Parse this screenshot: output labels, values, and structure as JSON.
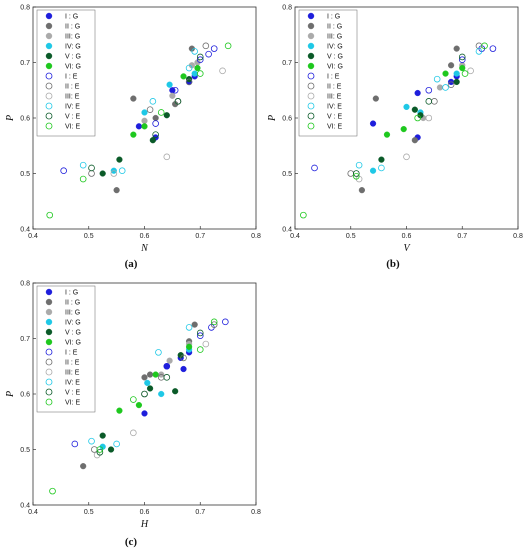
{
  "colors": {
    "I": "#1e1edc",
    "II": "#6e6e6e",
    "III": "#aaaaaa",
    "IV": "#1ec8e6",
    "V": "#0a5a28",
    "VI": "#1ec81e"
  },
  "chart_data": [
    {
      "type": "scatter",
      "panel_label": "(a)",
      "xlabel": "N",
      "ylabel": "P",
      "xlim": [
        0.4,
        0.8
      ],
      "ylim": [
        0.4,
        0.8
      ],
      "xticks": [
        "0.4",
        "0.5",
        "0.6",
        "0.7",
        "0.8"
      ],
      "yticks": [
        "0.4",
        "0.5",
        "0.6",
        "0.7",
        "0.8"
      ],
      "legend_position": "top-left",
      "legend": [
        "I : G",
        "II : G",
        "III: G",
        "IV: G",
        "V : G",
        "VI: G",
        "I : E",
        "II : E",
        "III: E",
        "IV: E",
        "V : E",
        "VI: E"
      ],
      "series": [
        {
          "name": "I : G",
          "group": "I",
          "filled": true,
          "points": [
            [
              0.59,
              0.585
            ],
            [
              0.62,
              0.565
            ],
            [
              0.65,
              0.65
            ],
            [
              0.68,
              0.665
            ],
            [
              0.69,
              0.675
            ]
          ]
        },
        {
          "name": "II : G",
          "group": "II",
          "filled": true,
          "points": [
            [
              0.55,
              0.47
            ],
            [
              0.58,
              0.635
            ],
            [
              0.62,
              0.6
            ],
            [
              0.655,
              0.625
            ],
            [
              0.685,
              0.725
            ]
          ]
        },
        {
          "name": "III: G",
          "group": "III",
          "filled": true,
          "points": [
            [
              0.6,
              0.595
            ],
            [
              0.65,
              0.64
            ],
            [
              0.685,
              0.695
            ],
            [
              0.695,
              0.7
            ]
          ]
        },
        {
          "name": "IV: G",
          "group": "IV",
          "filled": true,
          "points": [
            [
              0.545,
              0.505
            ],
            [
              0.6,
              0.61
            ],
            [
              0.645,
              0.66
            ],
            [
              0.69,
              0.68
            ]
          ]
        },
        {
          "name": "V : G",
          "group": "V",
          "filled": true,
          "points": [
            [
              0.525,
              0.5
            ],
            [
              0.555,
              0.525
            ],
            [
              0.615,
              0.56
            ],
            [
              0.64,
              0.605
            ],
            [
              0.68,
              0.67
            ]
          ]
        },
        {
          "name": "VI: G",
          "group": "VI",
          "filled": true,
          "points": [
            [
              0.58,
              0.57
            ],
            [
              0.6,
              0.585
            ],
            [
              0.67,
              0.675
            ],
            [
              0.695,
              0.69
            ]
          ]
        },
        {
          "name": "I : E",
          "group": "I",
          "filled": false,
          "points": [
            [
              0.455,
              0.505
            ],
            [
              0.62,
              0.59
            ],
            [
              0.655,
              0.65
            ],
            [
              0.7,
              0.705
            ],
            [
              0.725,
              0.725
            ],
            [
              0.715,
              0.715
            ]
          ]
        },
        {
          "name": "II : E",
          "group": "II",
          "filled": false,
          "points": [
            [
              0.505,
              0.5
            ],
            [
              0.61,
              0.615
            ],
            [
              0.66,
              0.63
            ],
            [
              0.68,
              0.665
            ],
            [
              0.71,
              0.73
            ]
          ]
        },
        {
          "name": "III: E",
          "group": "III",
          "filled": false,
          "points": [
            [
              0.545,
              0.5
            ],
            [
              0.64,
              0.53
            ],
            [
              0.66,
              0.63
            ],
            [
              0.74,
              0.685
            ]
          ]
        },
        {
          "name": "IV: E",
          "group": "IV",
          "filled": false,
          "points": [
            [
              0.49,
              0.515
            ],
            [
              0.56,
              0.505
            ],
            [
              0.615,
              0.63
            ],
            [
              0.68,
              0.69
            ],
            [
              0.69,
              0.72
            ]
          ]
        },
        {
          "name": "V : E",
          "group": "V",
          "filled": false,
          "points": [
            [
              0.505,
              0.51
            ],
            [
              0.62,
              0.57
            ],
            [
              0.66,
              0.63
            ],
            [
              0.7,
              0.71
            ]
          ]
        },
        {
          "name": "VI: E",
          "group": "VI",
          "filled": false,
          "points": [
            [
              0.43,
              0.425
            ],
            [
              0.49,
              0.49
            ],
            [
              0.63,
              0.61
            ],
            [
              0.7,
              0.68
            ],
            [
              0.75,
              0.73
            ]
          ]
        }
      ]
    },
    {
      "type": "scatter",
      "panel_label": "(b)",
      "xlabel": "V",
      "ylabel": "P",
      "xlim": [
        0.4,
        0.8
      ],
      "ylim": [
        0.4,
        0.8
      ],
      "xticks": [
        "0.4",
        "0.5",
        "0.6",
        "0.7",
        "0.8"
      ],
      "yticks": [
        "0.4",
        "0.5",
        "0.6",
        "0.7",
        "0.8"
      ],
      "legend_position": "top-left",
      "legend": [
        "I : G",
        "II : G",
        "III: G",
        "IV: G",
        "V : G",
        "VI: G",
        "I : E",
        "II : E",
        "III: E",
        "IV: E",
        "V : E",
        "VI: E"
      ],
      "series": [
        {
          "name": "I : G",
          "group": "I",
          "filled": true,
          "points": [
            [
              0.54,
              0.59
            ],
            [
              0.62,
              0.565
            ],
            [
              0.62,
              0.645
            ],
            [
              0.68,
              0.665
            ],
            [
              0.69,
              0.675
            ]
          ]
        },
        {
          "name": "II : G",
          "group": "II",
          "filled": true,
          "points": [
            [
              0.52,
              0.47
            ],
            [
              0.545,
              0.635
            ],
            [
              0.615,
              0.56
            ],
            [
              0.68,
              0.695
            ],
            [
              0.69,
              0.725
            ]
          ]
        },
        {
          "name": "III: G",
          "group": "III",
          "filled": true,
          "points": [
            [
              0.63,
              0.6
            ],
            [
              0.66,
              0.655
            ],
            [
              0.7,
              0.695
            ]
          ]
        },
        {
          "name": "IV: G",
          "group": "IV",
          "filled": true,
          "points": [
            [
              0.54,
              0.505
            ],
            [
              0.6,
              0.62
            ],
            [
              0.625,
              0.61
            ],
            [
              0.69,
              0.68
            ]
          ]
        },
        {
          "name": "V : G",
          "group": "V",
          "filled": true,
          "points": [
            [
              0.555,
              0.525
            ],
            [
              0.615,
              0.615
            ],
            [
              0.625,
              0.605
            ],
            [
              0.69,
              0.665
            ]
          ]
        },
        {
          "name": "VI: G",
          "group": "VI",
          "filled": true,
          "points": [
            [
              0.565,
              0.57
            ],
            [
              0.595,
              0.58
            ],
            [
              0.67,
              0.68
            ],
            [
              0.7,
              0.69
            ]
          ]
        },
        {
          "name": "I : E",
          "group": "I",
          "filled": false,
          "points": [
            [
              0.435,
              0.51
            ],
            [
              0.64,
              0.65
            ],
            [
              0.7,
              0.705
            ],
            [
              0.735,
              0.725
            ],
            [
              0.755,
              0.725
            ]
          ]
        },
        {
          "name": "II : E",
          "group": "II",
          "filled": false,
          "points": [
            [
              0.5,
              0.5
            ],
            [
              0.65,
              0.63
            ],
            [
              0.68,
              0.66
            ],
            [
              0.73,
              0.73
            ]
          ]
        },
        {
          "name": "III: E",
          "group": "III",
          "filled": false,
          "points": [
            [
              0.515,
              0.49
            ],
            [
              0.6,
              0.53
            ],
            [
              0.64,
              0.6
            ],
            [
              0.715,
              0.685
            ]
          ]
        },
        {
          "name": "IV: E",
          "group": "IV",
          "filled": false,
          "points": [
            [
              0.515,
              0.515
            ],
            [
              0.555,
              0.51
            ],
            [
              0.655,
              0.67
            ],
            [
              0.67,
              0.655
            ],
            [
              0.73,
              0.72
            ]
          ]
        },
        {
          "name": "V : E",
          "group": "V",
          "filled": false,
          "points": [
            [
              0.51,
              0.5
            ],
            [
              0.64,
              0.63
            ],
            [
              0.7,
              0.71
            ]
          ]
        },
        {
          "name": "VI: E",
          "group": "VI",
          "filled": false,
          "points": [
            [
              0.415,
              0.425
            ],
            [
              0.51,
              0.495
            ],
            [
              0.62,
              0.6
            ],
            [
              0.705,
              0.68
            ],
            [
              0.74,
              0.73
            ]
          ]
        }
      ]
    },
    {
      "type": "scatter",
      "panel_label": "(c)",
      "xlabel": "H",
      "ylabel": "P",
      "xlim": [
        0.4,
        0.8
      ],
      "ylim": [
        0.4,
        0.8
      ],
      "xticks": [
        "0.4",
        "0.5",
        "0.6",
        "0.7",
        "0.8"
      ],
      "yticks": [
        "0.4",
        "0.5",
        "0.6",
        "0.7",
        "0.8"
      ],
      "legend_position": "top-left",
      "legend": [
        "I : G",
        "II : G",
        "III: G",
        "IV: G",
        "V : G",
        "VI: G",
        "I : E",
        "II : E",
        "III: E",
        "IV: E",
        "V : E",
        "VI: E"
      ],
      "series": [
        {
          "name": "I : G",
          "group": "I",
          "filled": true,
          "points": [
            [
              0.6,
              0.565
            ],
            [
              0.64,
              0.65
            ],
            [
              0.665,
              0.665
            ],
            [
              0.67,
              0.645
            ],
            [
              0.68,
              0.675
            ]
          ]
        },
        {
          "name": "II : G",
          "group": "II",
          "filled": true,
          "points": [
            [
              0.49,
              0.47
            ],
            [
              0.6,
              0.63
            ],
            [
              0.61,
              0.635
            ],
            [
              0.68,
              0.695
            ],
            [
              0.69,
              0.725
            ]
          ]
        },
        {
          "name": "III: G",
          "group": "III",
          "filled": true,
          "points": [
            [
              0.63,
              0.635
            ],
            [
              0.645,
              0.66
            ],
            [
              0.68,
              0.69
            ]
          ]
        },
        {
          "name": "IV: G",
          "group": "IV",
          "filled": true,
          "points": [
            [
              0.525,
              0.505
            ],
            [
              0.605,
              0.62
            ],
            [
              0.63,
              0.6
            ],
            [
              0.68,
              0.68
            ]
          ]
        },
        {
          "name": "V : G",
          "group": "V",
          "filled": true,
          "points": [
            [
              0.525,
              0.525
            ],
            [
              0.54,
              0.5
            ],
            [
              0.61,
              0.61
            ],
            [
              0.655,
              0.605
            ],
            [
              0.665,
              0.67
            ]
          ]
        },
        {
          "name": "VI: G",
          "group": "VI",
          "filled": true,
          "points": [
            [
              0.555,
              0.57
            ],
            [
              0.59,
              0.58
            ],
            [
              0.62,
              0.635
            ],
            [
              0.68,
              0.685
            ]
          ]
        },
        {
          "name": "I : E",
          "group": "I",
          "filled": false,
          "points": [
            [
              0.475,
              0.51
            ],
            [
              0.64,
              0.65
            ],
            [
              0.7,
              0.705
            ],
            [
              0.72,
              0.72
            ],
            [
              0.745,
              0.73
            ]
          ]
        },
        {
          "name": "II : E",
          "group": "II",
          "filled": false,
          "points": [
            [
              0.51,
              0.5
            ],
            [
              0.63,
              0.63
            ],
            [
              0.67,
              0.665
            ],
            [
              0.725,
              0.725
            ]
          ]
        },
        {
          "name": "III: E",
          "group": "III",
          "filled": false,
          "points": [
            [
              0.515,
              0.49
            ],
            [
              0.58,
              0.53
            ],
            [
              0.6,
              0.6
            ],
            [
              0.71,
              0.69
            ]
          ]
        },
        {
          "name": "IV: E",
          "group": "IV",
          "filled": false,
          "points": [
            [
              0.505,
              0.515
            ],
            [
              0.55,
              0.51
            ],
            [
              0.625,
              0.675
            ],
            [
              0.68,
              0.72
            ]
          ]
        },
        {
          "name": "V : E",
          "group": "V",
          "filled": false,
          "points": [
            [
              0.52,
              0.495
            ],
            [
              0.6,
              0.6
            ],
            [
              0.64,
              0.63
            ],
            [
              0.7,
              0.71
            ]
          ]
        },
        {
          "name": "VI: E",
          "group": "VI",
          "filled": false,
          "points": [
            [
              0.435,
              0.425
            ],
            [
              0.52,
              0.5
            ],
            [
              0.58,
              0.59
            ],
            [
              0.7,
              0.68
            ],
            [
              0.725,
              0.73
            ]
          ]
        }
      ]
    }
  ]
}
